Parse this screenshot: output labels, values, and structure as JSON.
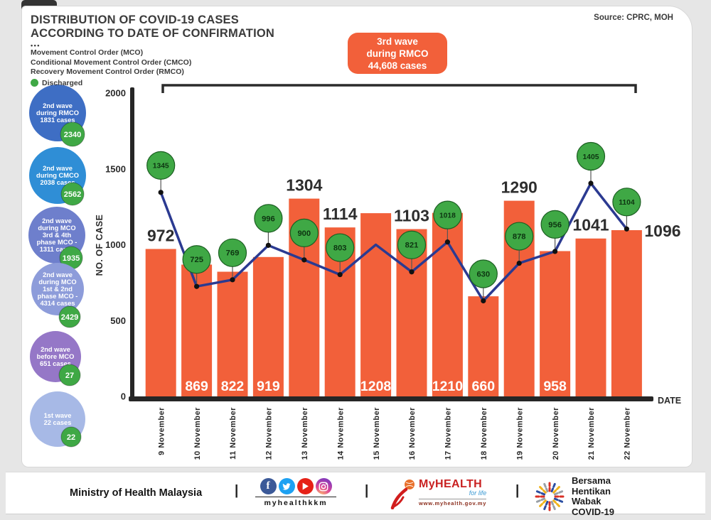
{
  "header": {
    "title_line1": "DISTRIBUTION OF COVID-19 CASES",
    "title_line2": "ACCORDING TO DATE OF CONFIRMATION",
    "dots": "•••",
    "legend_lines": [
      "Movement Control Order (MCO)",
      "Conditional Movement Control Order (CMCO)",
      "Recovery Movement Control Order (RMCO)"
    ],
    "discharged_label": "Discharged",
    "source": "Source: CPRC, MOH"
  },
  "callout": {
    "lines": [
      "3rd wave",
      "during RMCO",
      "44,608 cases"
    ],
    "color": "#f2603a"
  },
  "colors": {
    "orange": "#f2603a",
    "green": "#3fa845",
    "navy": "#2b3a91",
    "axis": "#262626"
  },
  "wave_bubbles": [
    {
      "lines": [
        "2nd wave",
        "during RMCO",
        "1831 cases"
      ],
      "discharged": "2340",
      "color": "#3e6ec4"
    },
    {
      "lines": [
        "2nd wave",
        "during CMCO",
        "2038 cases"
      ],
      "discharged": "2562",
      "color": "#2f8ed6"
    },
    {
      "lines": [
        "2nd wave",
        "during MCO",
        "3rd & 4th",
        "phase MCO -",
        "1311 cases"
      ],
      "discharged": "1935",
      "color": "#6e7fcc"
    },
    {
      "lines": [
        "2nd wave",
        "during MCO",
        "1st & 2nd",
        "phase MCO -",
        "4314 cases"
      ],
      "discharged": "2429",
      "color": "#8d9cda"
    },
    {
      "lines": [
        "2nd wave",
        "before MCO",
        "651 cases"
      ],
      "discharged": "27",
      "color": "#9577c7"
    },
    {
      "lines": [
        "1st wave",
        "22 cases"
      ],
      "discharged": "22",
      "color": "#a7b9e6"
    }
  ],
  "chart_data": {
    "type": "bar",
    "title": "Distribution of COVID-19 cases according to date of confirmation",
    "xlabel": "DATE",
    "ylabel": "NO. OF CASE",
    "ylim": [
      0,
      2000
    ],
    "yticks": [
      0,
      500,
      1000,
      1500,
      2000
    ],
    "grid": false,
    "annotation_bracket": "3rd wave during RMCO 44,608 cases",
    "categories": [
      "9 November",
      "10 November",
      "11 November",
      "12 November",
      "13 November",
      "14 November",
      "15 November",
      "16 November",
      "17 November",
      "18 November",
      "19 November",
      "20 November",
      "21 November",
      "22 November"
    ],
    "series": [
      {
        "name": "Confirmed cases",
        "type": "bar",
        "color": "#f2603a",
        "values": [
          972,
          869,
          822,
          919,
          1304,
          1114,
          1208,
          1103,
          1210,
          660,
          1290,
          958,
          1041,
          1096
        ],
        "label_placement": [
          "above",
          "inside",
          "inside",
          "inside",
          "above",
          "above",
          "inside",
          "above",
          "inside",
          "inside",
          "above",
          "inside",
          "above",
          "right"
        ]
      },
      {
        "name": "Discharged",
        "type": "line",
        "color": "#2b3a91",
        "marker_color": "#3fa845",
        "values": [
          1345,
          725,
          769,
          996,
          900,
          803,
          1000,
          821,
          1018,
          630,
          878,
          956,
          1405,
          1104
        ],
        "labels": [
          "1345",
          "725",
          "769",
          "996",
          "900",
          "803",
          "",
          "821",
          "1018",
          "630",
          "878",
          "956",
          "1405",
          "1104"
        ]
      }
    ]
  },
  "footer": {
    "ministry": "Ministry of Health Malaysia",
    "divider": "|",
    "social_icons": [
      "facebook-icon",
      "twitter-icon",
      "youtube-icon",
      "instagram-icon"
    ],
    "social_handle": "myhealthkkm",
    "facebook_letter": "f",
    "myhealth": {
      "name": "MyHEALTH",
      "tagline": "for life",
      "url": "www.myhealth.gov.my"
    },
    "campaign_text": "Bersama\nHentikan\nWabak\nCOVID-19"
  }
}
